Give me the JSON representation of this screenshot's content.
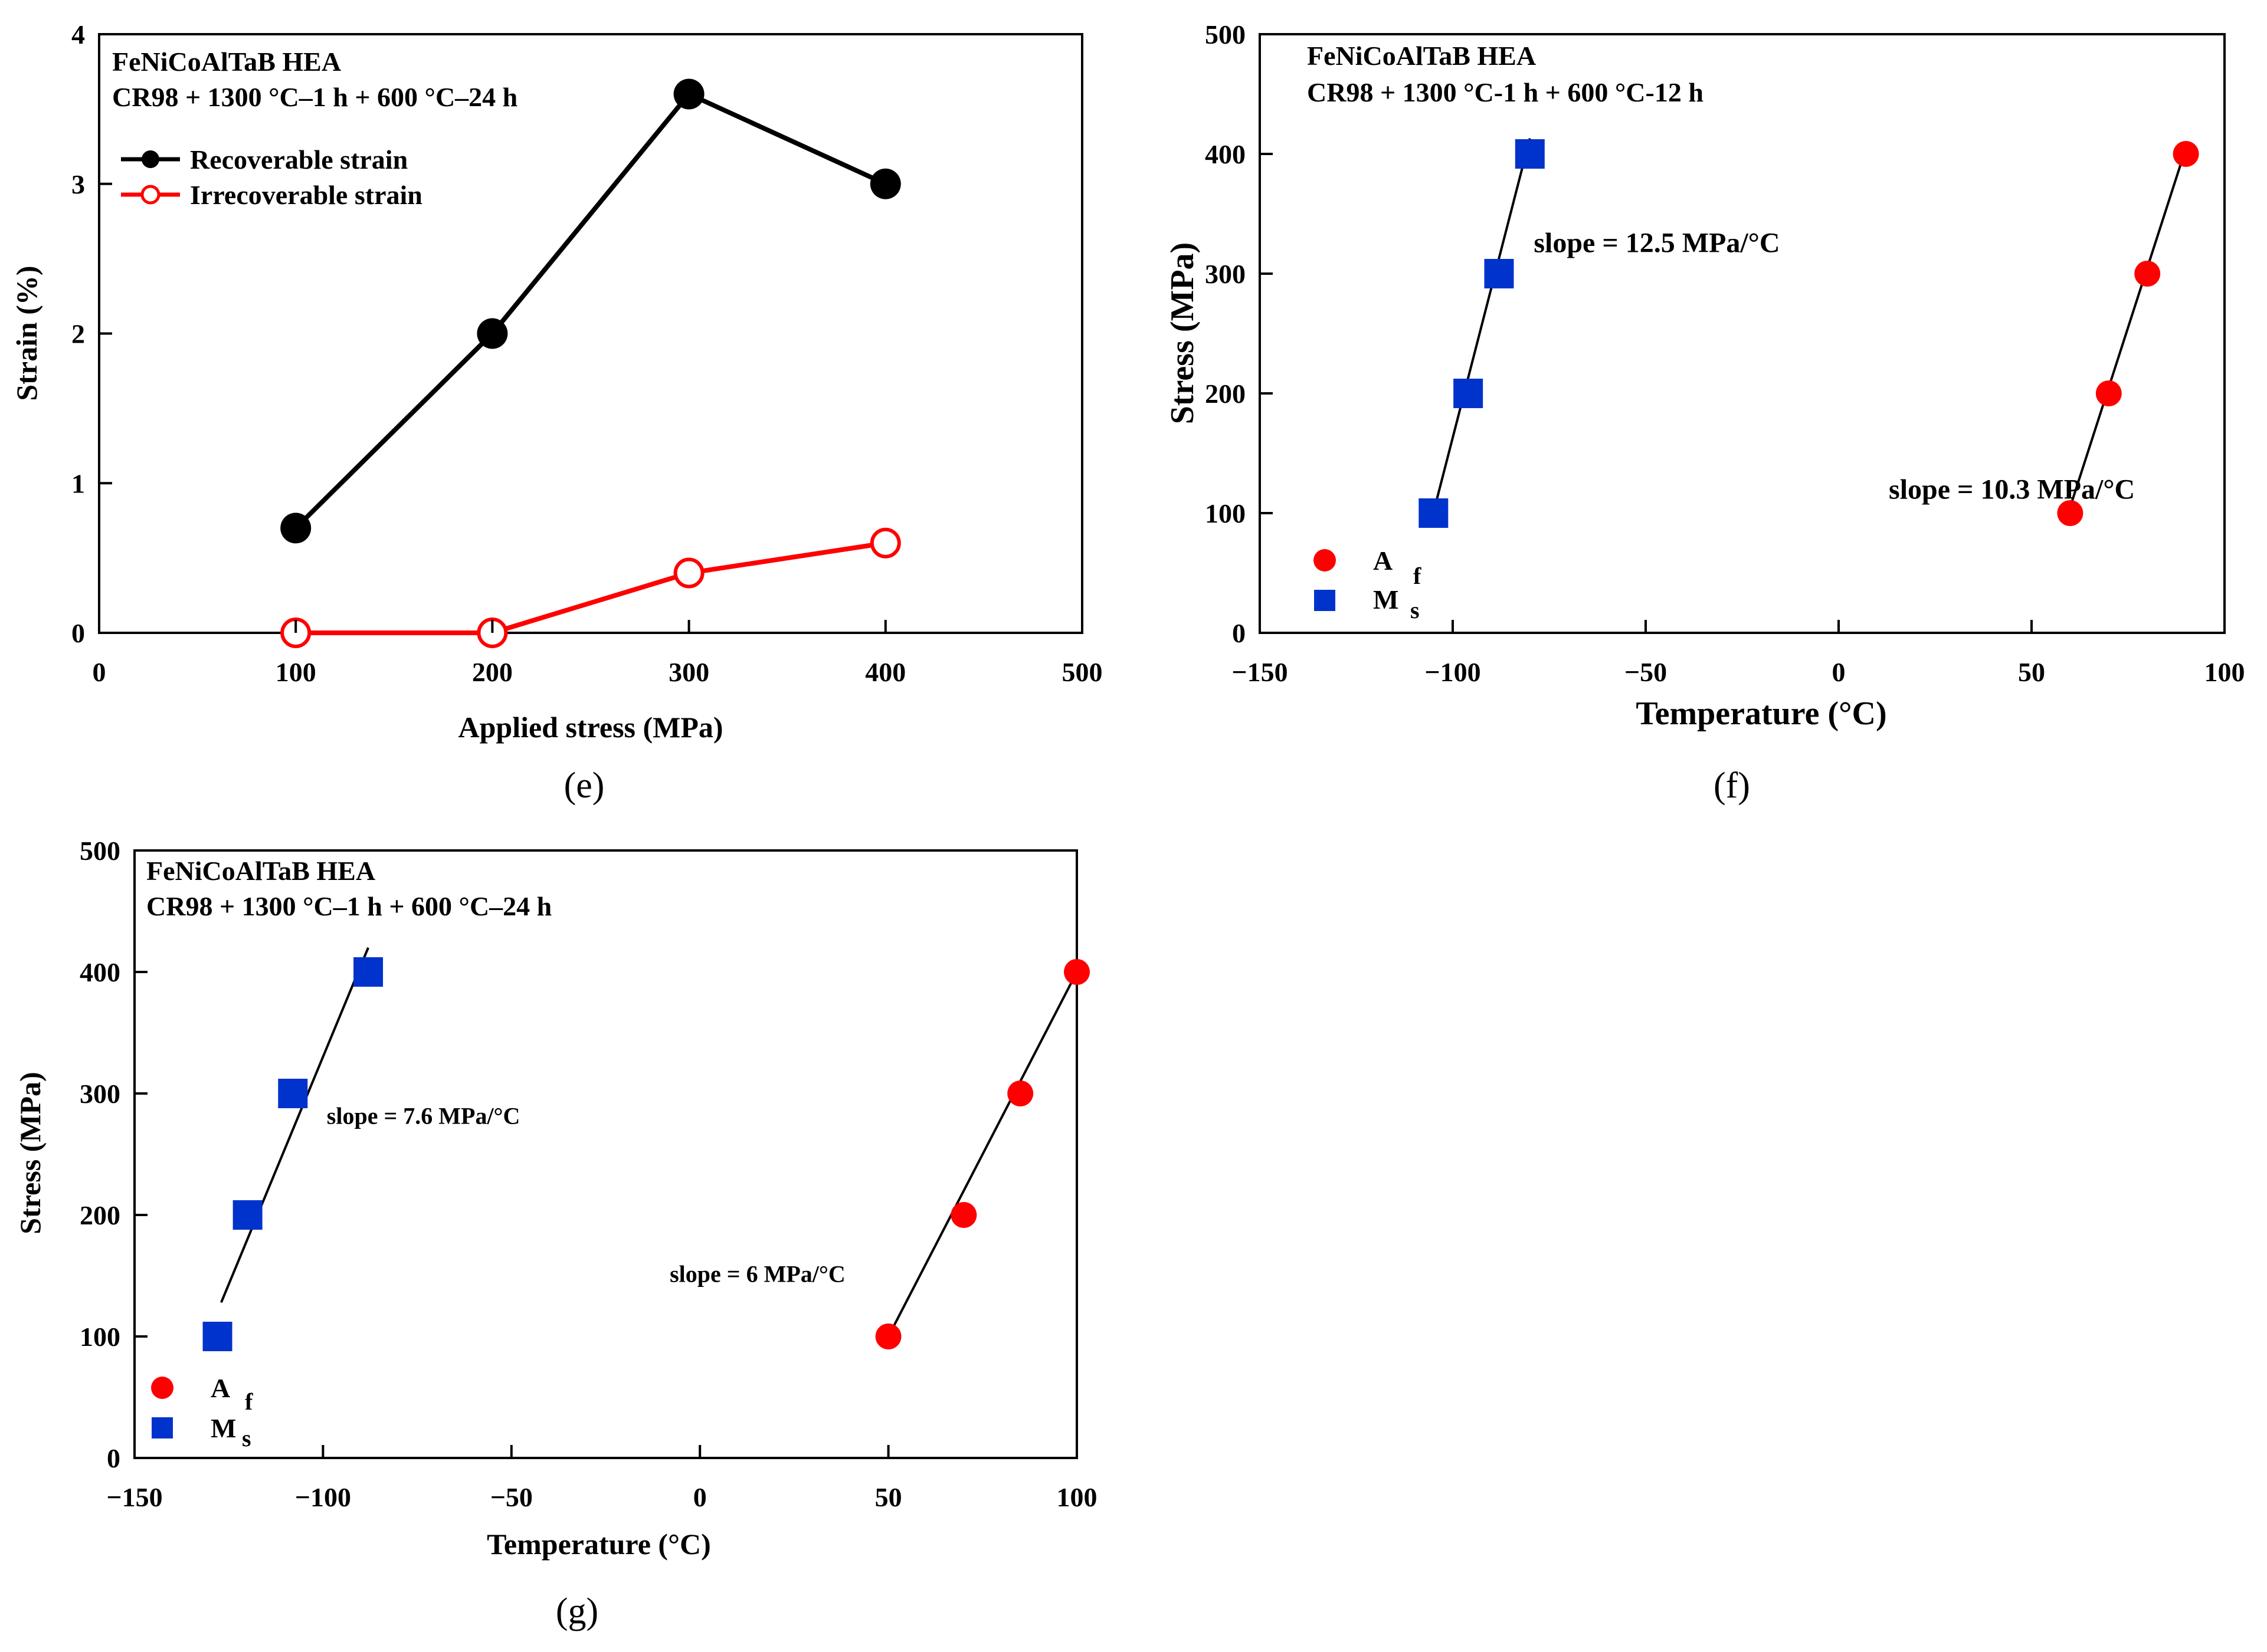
{
  "chart_data": [
    {
      "id": "e",
      "type": "line",
      "panel_label": "(e)",
      "title_lines": [
        "FeNiCoAlTaB HEA",
        "CR98 + 1300 °C–1 h + 600 °C–24 h"
      ],
      "xlabel": "Applied stress (MPa)",
      "ylabel": "Strain (%)",
      "xlim": [
        0,
        500
      ],
      "ylim": [
        0,
        4
      ],
      "xticks": [
        0,
        100,
        200,
        300,
        400,
        500
      ],
      "xtick_labels": [
        "0",
        "100",
        "200",
        "300",
        "400",
        "500"
      ],
      "yticks": [
        0,
        1,
        2,
        3,
        4
      ],
      "ytick_labels": [
        "0",
        "1",
        "2",
        "3",
        "4"
      ],
      "legend_position": "top-left",
      "series": [
        {
          "name": "Recoverable strain",
          "color": "#000000",
          "marker": "filled-circle",
          "x": [
            100,
            200,
            300,
            400
          ],
          "y": [
            0.7,
            2.0,
            3.6,
            3.0
          ]
        },
        {
          "name": "Irrecoverable strain",
          "color": "#ff0000",
          "marker": "open-circle",
          "x": [
            100,
            200,
            300,
            400
          ],
          "y": [
            0.0,
            0.0,
            0.4,
            0.6
          ]
        }
      ],
      "fits": [],
      "annotations": []
    },
    {
      "id": "f",
      "type": "scatter",
      "panel_label": "(f)",
      "title_lines": [
        "FeNiCoAlTaB HEA",
        "CR98 + 1300 °C-1 h + 600 °C-12 h"
      ],
      "xlabel": "Temperature (°C)",
      "ylabel": "Stress (MPa)",
      "xlim": [
        -150,
        100
      ],
      "ylim": [
        0,
        500
      ],
      "xticks": [
        -150,
        -100,
        -50,
        0,
        50,
        100
      ],
      "xtick_labels": [
        "−150",
        "−100",
        "−50",
        "0",
        "50",
        "100"
      ],
      "yticks": [
        0,
        100,
        200,
        300,
        400,
        500
      ],
      "ytick_labels": [
        "0",
        "100",
        "200",
        "300",
        "400",
        "500"
      ],
      "legend_position": "bottom-left",
      "series": [
        {
          "name": "A",
          "subscript": "f",
          "color": "#ff0000",
          "marker": "filled-circle",
          "x": [
            60,
            70,
            80,
            90
          ],
          "y": [
            100,
            200,
            300,
            400
          ]
        },
        {
          "name": "M",
          "subscript": "s",
          "color": "#0033cc",
          "marker": "filled-square",
          "x": [
            -105,
            -96,
            -88,
            -80
          ],
          "y": [
            100,
            200,
            300,
            400
          ]
        }
      ],
      "fits": [
        {
          "x": [
            -106,
            -80
          ],
          "y": [
            88,
            413
          ]
        },
        {
          "x": [
            59,
            90
          ],
          "y": [
            95,
            405
          ]
        }
      ],
      "annotations": [
        {
          "text": "slope = 12.5 MPa/°C",
          "x": -79,
          "y": 318,
          "size": 48
        },
        {
          "text": "slope = 10.3 MPa/°C",
          "x": 13,
          "y": 112,
          "size": 48
        }
      ]
    },
    {
      "id": "g",
      "type": "scatter",
      "panel_label": "(g)",
      "title_lines": [
        "FeNiCoAlTaB HEA",
        "CR98 + 1300 °C–1 h + 600 °C–24 h"
      ],
      "xlabel": "Temperature (°C)",
      "ylabel": "Stress (MPa)",
      "xlim": [
        -150,
        100
      ],
      "ylim": [
        0,
        500
      ],
      "xticks": [
        -150,
        -100,
        -50,
        0,
        50,
        100
      ],
      "xtick_labels": [
        "−150",
        "−100",
        "−50",
        "0",
        "50",
        "100"
      ],
      "yticks": [
        0,
        100,
        200,
        300,
        400,
        500
      ],
      "ytick_labels": [
        "0",
        "100",
        "200",
        "300",
        "400",
        "500"
      ],
      "legend_position": "bottom-left",
      "series": [
        {
          "name": "A",
          "subscript": "f",
          "color": "#ff0000",
          "marker": "filled-circle",
          "x": [
            50,
            70,
            85,
            100
          ],
          "y": [
            100,
            200,
            300,
            400
          ]
        },
        {
          "name": "M",
          "subscript": "s",
          "color": "#0033cc",
          "marker": "filled-square",
          "x": [
            -128,
            -120,
            -108,
            -88
          ],
          "y": [
            100,
            200,
            300,
            400
          ]
        }
      ],
      "fits": [
        {
          "x": [
            -127,
            -88
          ],
          "y": [
            128,
            420
          ]
        },
        {
          "x": [
            50,
            100
          ],
          "y": [
            100,
            400
          ]
        }
      ],
      "annotations": [
        {
          "text": "slope = 7.6 MPa/°C",
          "x": -99,
          "y": 275,
          "size": 40
        },
        {
          "text": "slope = 6 MPa/°C",
          "x": -8,
          "y": 145,
          "size": 40
        }
      ]
    }
  ]
}
